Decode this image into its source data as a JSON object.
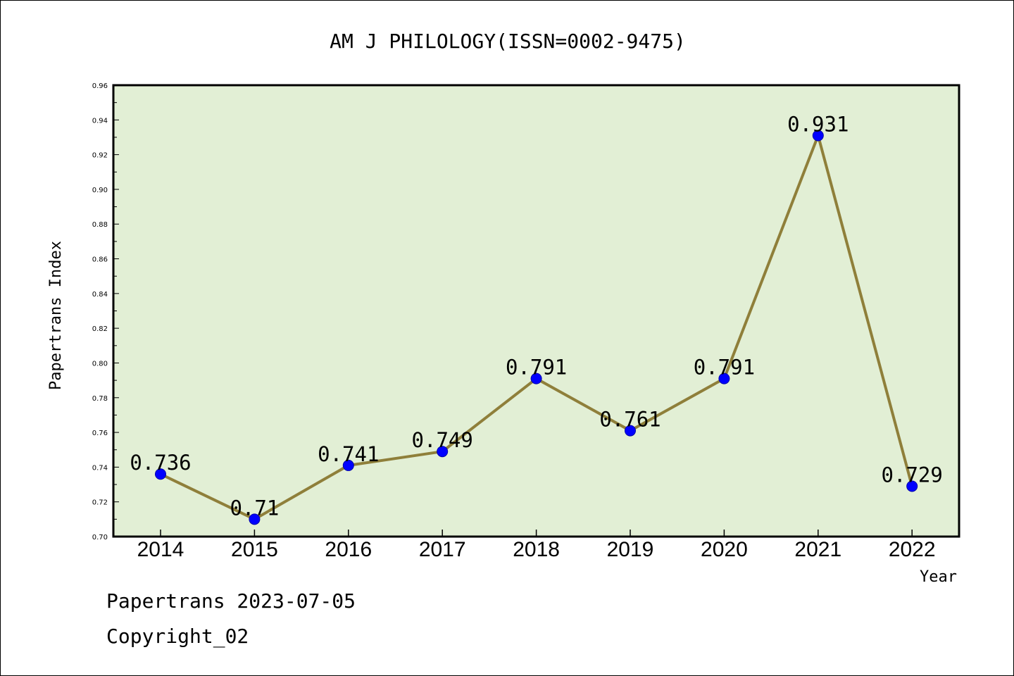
{
  "chart_data": {
    "type": "line",
    "title": "AM J PHILOLOGY(ISSN=0002-9475)",
    "xlabel": "Year",
    "ylabel": "Papertrans Index",
    "categories": [
      "2014",
      "2015",
      "2016",
      "2017",
      "2018",
      "2019",
      "2020",
      "2021",
      "2022"
    ],
    "series": [
      {
        "values": [
          0.736,
          0.71,
          0.741,
          0.749,
          0.791,
          0.761,
          0.791,
          0.931,
          0.729
        ]
      }
    ],
    "data_labels": [
      "0.736",
      "0.71",
      "0.741",
      "0.749",
      "0.791",
      "0.761",
      "0.791",
      "0.931",
      "0.729"
    ],
    "ylim": [
      0.7,
      0.96
    ],
    "yticks": [
      "0.70",
      "0.72",
      "0.74",
      "0.76",
      "0.78",
      "0.80",
      "0.82",
      "0.84",
      "0.86",
      "0.88",
      "0.90",
      "0.92",
      "0.94",
      "0.96"
    ],
    "grid": false,
    "legend": "none",
    "colors": {
      "plot_background": "#e2efd5",
      "line": "#8f7f3a",
      "marker": "#0000ff"
    }
  },
  "footer": {
    "line1": "Papertrans 2023-07-05",
    "line2": "Copyright_02"
  }
}
